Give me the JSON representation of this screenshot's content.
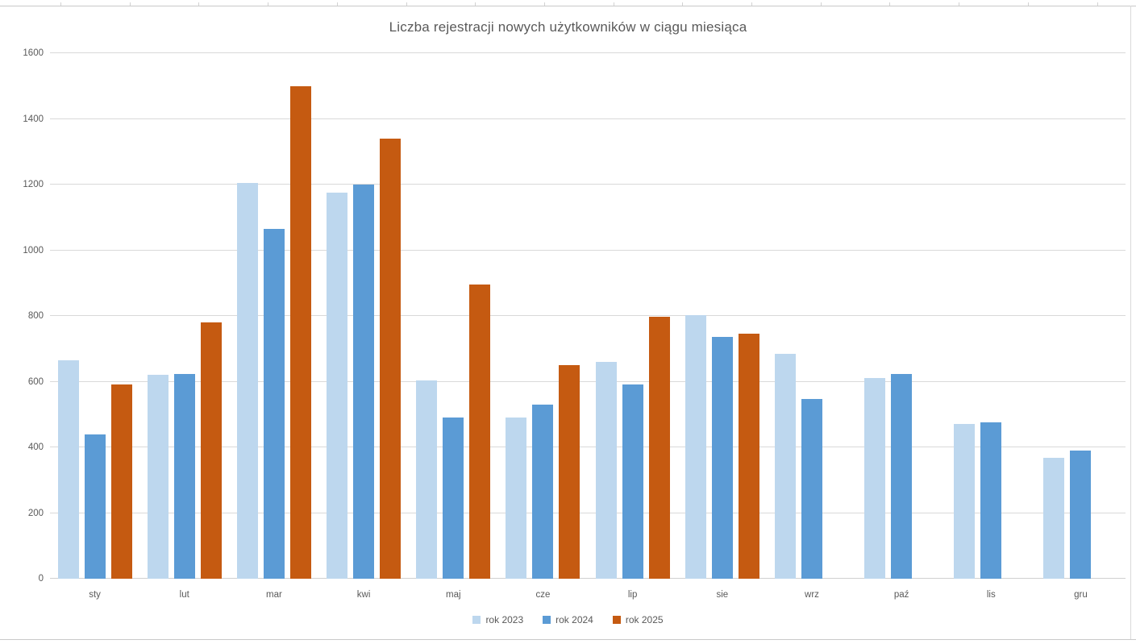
{
  "chart_data": {
    "type": "bar",
    "title": "Liczba rejestracji nowych użytkowników w ciągu miesiąca",
    "categories": [
      "sty",
      "lut",
      "mar",
      "kwi",
      "maj",
      "cze",
      "lip",
      "sie",
      "wrz",
      "paź",
      "lis",
      "gru"
    ],
    "series": [
      {
        "name": "rok 2023",
        "color": "#BDD7EE",
        "values": [
          665,
          620,
          1205,
          1175,
          603,
          490,
          660,
          803,
          685,
          612,
          470,
          368
        ]
      },
      {
        "name": "rok 2024",
        "color": "#5B9BD5",
        "values": [
          440,
          623,
          1065,
          1200,
          490,
          530,
          592,
          737,
          548,
          623,
          475,
          390
        ]
      },
      {
        "name": "rok 2025",
        "color": "#C55A11",
        "values": [
          592,
          780,
          1500,
          1340,
          895,
          650,
          798,
          746,
          null,
          null,
          null,
          null
        ]
      }
    ],
    "ylim": [
      0,
      1600
    ],
    "ytick_interval": 200,
    "yticks": [
      "0",
      "200",
      "400",
      "600",
      "800",
      "1000",
      "1200",
      "1400",
      "1600"
    ],
    "grid": true,
    "legend_position": "bottom",
    "xlabel": "",
    "ylabel": ""
  },
  "frame": {
    "line_color": "#c9c9c9",
    "gridline_color": "#d9d9d9",
    "text_color": "#595959"
  }
}
